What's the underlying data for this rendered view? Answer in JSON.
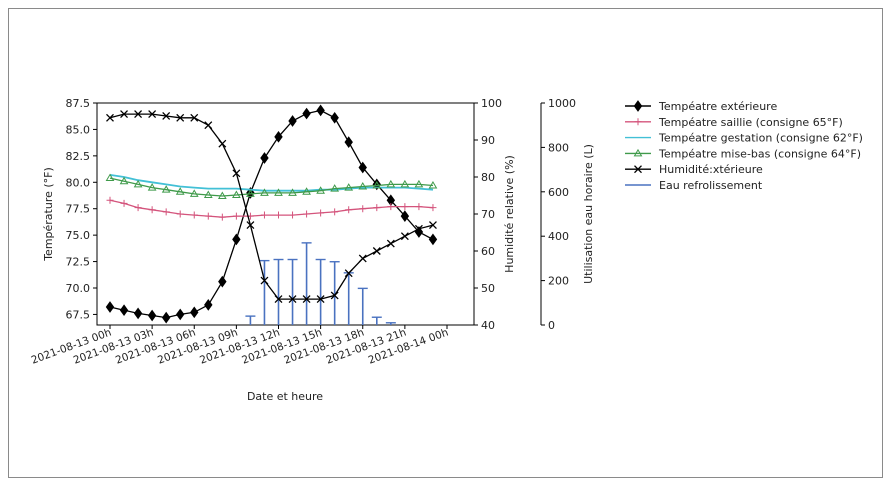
{
  "chart_data": {
    "type": "line",
    "xlabel": "Date et heure",
    "ylabel_left": "Température (°F)",
    "ylabel_right1": "Humidité relative (%)",
    "ylabel_right2": "Utilisation eau horaire (L)",
    "xticks": [
      "2021-08-13 00h",
      "2021-08-13 03h",
      "2021-08-13 06h",
      "2021-08-13 09h",
      "2021-08-13 12h",
      "2021-08-13 15h",
      "2021-08-13 18h",
      "2021-08-13 21h",
      "2021-08-14 00h"
    ],
    "ylim_left": [
      66.5,
      87.5
    ],
    "yticks_left": [
      "67.5",
      "70.0",
      "72.5",
      "75.0",
      "77.5",
      "80.0",
      "82.5",
      "85.0",
      "87.5"
    ],
    "ylim_right1": [
      40,
      100
    ],
    "yticks_right1": [
      "40",
      "50",
      "60",
      "70",
      "80",
      "90",
      "100"
    ],
    "ylim_right2": [
      0,
      1000
    ],
    "yticks_right2": [
      "0",
      "200",
      "400",
      "600",
      "800",
      "1000"
    ],
    "legend_position": "right, outside plot",
    "series": [
      {
        "name": "Tempéatre extérieure",
        "axis": "left",
        "color": "#000000",
        "marker": "diamond",
        "x": [
          0,
          1,
          2,
          3,
          4,
          5,
          6,
          7,
          8,
          9,
          10,
          11,
          12,
          13,
          14,
          15,
          16,
          17,
          18,
          19,
          20,
          21,
          22,
          23
        ],
        "values": [
          68.2,
          67.9,
          67.6,
          67.4,
          67.2,
          67.5,
          67.7,
          68.4,
          70.6,
          74.6,
          79.0,
          82.3,
          84.3,
          85.8,
          86.5,
          86.8,
          86.1,
          83.8,
          81.4,
          79.8,
          78.3,
          76.8,
          75.3,
          74.6
        ]
      },
      {
        "name": "Tempéatre saillie (consigne 65°F)",
        "axis": "left",
        "color": "#d4547c",
        "marker": "plus",
        "x": [
          0,
          1,
          2,
          3,
          4,
          5,
          6,
          7,
          8,
          9,
          10,
          11,
          12,
          13,
          14,
          15,
          16,
          17,
          18,
          19,
          20,
          21,
          22,
          23
        ],
        "values": [
          78.3,
          78.0,
          77.6,
          77.4,
          77.2,
          77.0,
          76.9,
          76.8,
          76.7,
          76.8,
          76.8,
          76.9,
          76.9,
          76.9,
          77.0,
          77.1,
          77.2,
          77.4,
          77.5,
          77.6,
          77.7,
          77.7,
          77.7,
          77.6
        ]
      },
      {
        "name": "Tempéatre gestation (consigne 62°F)",
        "axis": "left",
        "color": "#42c0d6",
        "marker": "none",
        "x": [
          0,
          1,
          2,
          3,
          4,
          5,
          6,
          7,
          8,
          9,
          10,
          11,
          12,
          13,
          14,
          15,
          16,
          17,
          18,
          19,
          20,
          21,
          22,
          23
        ],
        "values": [
          80.7,
          80.5,
          80.2,
          80.0,
          79.8,
          79.6,
          79.5,
          79.4,
          79.4,
          79.4,
          79.3,
          79.2,
          79.2,
          79.2,
          79.2,
          79.3,
          79.3,
          79.4,
          79.5,
          79.5,
          79.5,
          79.5,
          79.4,
          79.3
        ]
      },
      {
        "name": "Tempéatre mise-bas (consigne 64°F)",
        "axis": "left",
        "color": "#3f9a4a",
        "marker": "triangle",
        "x": [
          0,
          1,
          2,
          3,
          4,
          5,
          6,
          7,
          8,
          9,
          10,
          11,
          12,
          13,
          14,
          15,
          16,
          17,
          18,
          19,
          20,
          21,
          22,
          23
        ],
        "values": [
          80.4,
          80.1,
          79.8,
          79.5,
          79.3,
          79.1,
          78.9,
          78.8,
          78.7,
          78.8,
          78.9,
          79.0,
          79.0,
          79.0,
          79.1,
          79.2,
          79.4,
          79.5,
          79.6,
          79.7,
          79.8,
          79.8,
          79.8,
          79.7
        ]
      },
      {
        "name": "Humidité:xtérieure",
        "axis": "right1",
        "color": "#000000",
        "marker": "x",
        "x": [
          0,
          1,
          2,
          3,
          4,
          5,
          6,
          7,
          8,
          9,
          10,
          11,
          12,
          13,
          14,
          15,
          16,
          17,
          18,
          19,
          20,
          21,
          22,
          23
        ],
        "values": [
          96,
          97,
          97,
          97,
          96.5,
          96,
          96,
          94,
          89,
          81,
          67,
          52,
          47,
          47,
          47,
          47,
          48,
          54,
          58,
          60,
          62,
          64,
          66,
          67
        ]
      },
      {
        "name": "Eau refrolissement",
        "axis": "right2",
        "color": "#4a72c0",
        "marker": "bar",
        "x": [
          10,
          11,
          12,
          13,
          14,
          15,
          16,
          17,
          18,
          19,
          20,
          21
        ],
        "values": [
          40,
          290,
          295,
          295,
          370,
          295,
          285,
          235,
          165,
          35,
          10,
          0
        ]
      }
    ]
  }
}
